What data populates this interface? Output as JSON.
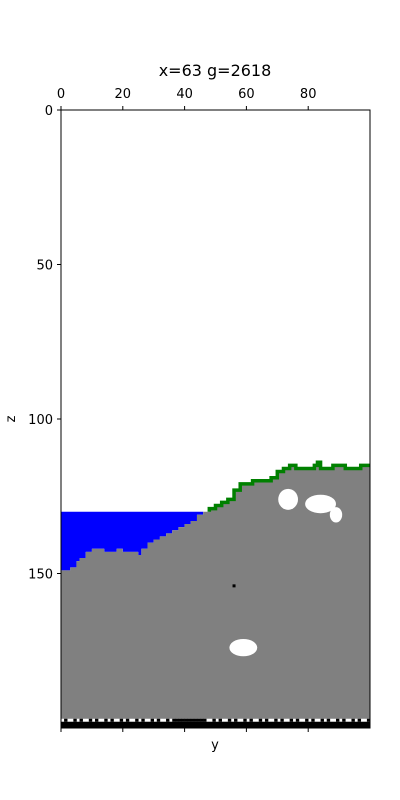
{
  "chart_data": {
    "type": "heatmap",
    "title": "x=63 g=2618",
    "xlabel": "y",
    "ylabel": "z",
    "x_axis_position": "top",
    "x_range": [
      0,
      100
    ],
    "z_range": [
      0,
      200
    ],
    "z_inverted": true,
    "x_ticks": [
      0,
      20,
      40,
      60,
      80
    ],
    "z_ticks": [
      0,
      50,
      100,
      150
    ],
    "grid": false,
    "legend": "none",
    "colors": {
      "air": "#ffffff",
      "stone": "#808080",
      "water": "#0000ff",
      "grass": "#008000",
      "bedrock": "#000000"
    },
    "water_level_z": 130,
    "terrain_surface": [
      {
        "y": 0,
        "z": 149
      },
      {
        "y": 2,
        "z": 149
      },
      {
        "y": 3,
        "z": 148
      },
      {
        "y": 5,
        "z": 146
      },
      {
        "y": 6,
        "z": 145
      },
      {
        "y": 8,
        "z": 143
      },
      {
        "y": 10,
        "z": 142
      },
      {
        "y": 12,
        "z": 142
      },
      {
        "y": 14,
        "z": 143
      },
      {
        "y": 16,
        "z": 143
      },
      {
        "y": 18,
        "z": 142
      },
      {
        "y": 20,
        "z": 143
      },
      {
        "y": 25,
        "z": 144
      },
      {
        "y": 26,
        "z": 142
      },
      {
        "y": 28,
        "z": 140
      },
      {
        "y": 30,
        "z": 139
      },
      {
        "y": 32,
        "z": 138
      },
      {
        "y": 34,
        "z": 137
      },
      {
        "y": 36,
        "z": 136
      },
      {
        "y": 38,
        "z": 135
      },
      {
        "y": 40,
        "z": 134
      },
      {
        "y": 42,
        "z": 133
      },
      {
        "y": 44,
        "z": 131
      },
      {
        "y": 46,
        "z": 130
      },
      {
        "y": 48,
        "z": 129
      },
      {
        "y": 50,
        "z": 128
      },
      {
        "y": 52,
        "z": 127
      },
      {
        "y": 54,
        "z": 126
      },
      {
        "y": 56,
        "z": 123
      },
      {
        "y": 58,
        "z": 121
      },
      {
        "y": 60,
        "z": 121
      },
      {
        "y": 62,
        "z": 120
      },
      {
        "y": 65,
        "z": 120
      },
      {
        "y": 68,
        "z": 119
      },
      {
        "y": 70,
        "z": 117
      },
      {
        "y": 72,
        "z": 116
      },
      {
        "y": 74,
        "z": 115
      },
      {
        "y": 76,
        "z": 116
      },
      {
        "y": 78,
        "z": 116
      },
      {
        "y": 80,
        "z": 116
      },
      {
        "y": 82,
        "z": 115
      },
      {
        "y": 83,
        "z": 114
      },
      {
        "y": 84,
        "z": 116
      },
      {
        "y": 86,
        "z": 116
      },
      {
        "y": 88,
        "z": 115
      },
      {
        "y": 90,
        "z": 115
      },
      {
        "y": 92,
        "z": 116
      },
      {
        "y": 95,
        "z": 116
      },
      {
        "y": 97,
        "z": 115
      },
      {
        "y": 100,
        "z": 115
      }
    ],
    "grass_from_y": 47,
    "caves": [
      {
        "y_center": 73.5,
        "z_center": 126,
        "y_radius": 3.2,
        "z_radius": 3.4
      },
      {
        "y_center": 84,
        "z_center": 127.5,
        "y_radius": 5,
        "z_radius": 3
      },
      {
        "y_center": 89,
        "z_center": 131,
        "y_radius": 2,
        "z_radius": 2.5
      },
      {
        "y_center": 59,
        "z_center": 174,
        "y_radius": 4.5,
        "z_radius": 2.8
      }
    ],
    "stray_voxels": [
      {
        "y": 56,
        "z": 154
      }
    ],
    "bedrock_top_z": 197
  }
}
